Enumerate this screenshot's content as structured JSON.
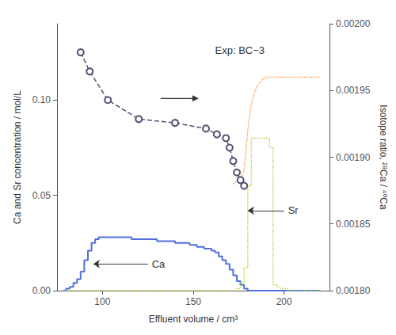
{
  "chart_data": {
    "type": "line",
    "xlabel": "Effluent volume / cm³",
    "ylabel": "Ca and Sr concentration / mol/L",
    "y2label": "Isotope ratio, ²⁸Ca / ⁴⁰Ca",
    "xlim": [
      75,
      225
    ],
    "xticks": [
      100,
      150,
      200
    ],
    "ylim": [
      0.0,
      0.14
    ],
    "yticks": [
      {
        "value": 0,
        "label": "0.00"
      },
      0.05,
      {
        "value": 0.1,
        "label": "0.10"
      }
    ],
    "y2lim": [
      0.0018,
      0.002
    ],
    "y2ticks": [
      {
        "value": 0.0018,
        "label": "0.00180"
      },
      0.00185,
      {
        "value": 0.0019,
        "label": "0.00190"
      },
      0.00195,
      {
        "value": 0.002,
        "label": "0.00200"
      }
    ],
    "grid": false,
    "series": [
      {
        "name": "Ca",
        "type": "step",
        "line_style": "solid",
        "x": [
          78,
          80,
          82,
          84,
          86,
          88,
          90,
          92,
          94,
          96,
          98,
          100,
          102,
          104,
          106,
          108,
          110,
          112,
          114,
          116,
          118,
          120,
          122,
          124,
          126,
          128,
          130,
          132,
          134,
          136,
          138,
          140,
          142,
          144,
          146,
          148,
          150,
          152,
          154,
          156,
          158,
          160,
          162,
          164,
          166,
          168,
          170,
          172,
          174,
          176,
          178,
          180,
          182,
          184,
          186,
          188,
          190,
          192,
          194,
          196,
          198,
          200,
          202,
          204,
          206,
          208,
          210,
          212,
          214,
          216,
          218,
          220
        ],
        "values": [
          0.0,
          0.001,
          0.002,
          0.004,
          0.006,
          0.01,
          0.016,
          0.021,
          0.025,
          0.027,
          0.028,
          0.028,
          0.028,
          0.028,
          0.028,
          0.028,
          0.028,
          0.028,
          0.028,
          0.027,
          0.027,
          0.027,
          0.027,
          0.027,
          0.027,
          0.027,
          0.026,
          0.026,
          0.026,
          0.026,
          0.026,
          0.025,
          0.025,
          0.025,
          0.025,
          0.024,
          0.024,
          0.023,
          0.023,
          0.022,
          0.022,
          0.021,
          0.02,
          0.018,
          0.016,
          0.014,
          0.011,
          0.008,
          0.005,
          0.003,
          0.001,
          0.0,
          0.0,
          0.0,
          0.0,
          0.0,
          0.0,
          0.0,
          0.0,
          0.0,
          0.0,
          0.0,
          0.0,
          0.0,
          0.0,
          0.0,
          0.0,
          0.0,
          0.0,
          0.0,
          0.0,
          0.0
        ]
      },
      {
        "name": "Sr",
        "type": "step",
        "line_style": "dotted",
        "x": [
          78,
          80,
          82,
          84,
          86,
          88,
          90,
          92,
          94,
          96,
          98,
          100,
          102,
          104,
          106,
          108,
          110,
          112,
          114,
          116,
          118,
          120,
          122,
          124,
          126,
          128,
          130,
          132,
          134,
          136,
          138,
          140,
          142,
          144,
          146,
          148,
          150,
          152,
          154,
          156,
          158,
          160,
          162,
          164,
          166,
          168,
          170,
          172,
          174,
          176,
          178,
          180,
          182,
          184,
          186,
          188,
          190,
          192,
          194,
          196,
          198,
          200,
          202,
          204,
          206,
          208,
          210,
          212,
          214,
          216,
          218,
          220
        ],
        "values": [
          0.0,
          0.0,
          0.0,
          0.0,
          0.0,
          0.0,
          0.0,
          0.0,
          0.0,
          0.0,
          0.0,
          0.0,
          0.0,
          0.0,
          0.0,
          0.0,
          0.0,
          0.0,
          0.0,
          0.0,
          0.0,
          0.0,
          0.0,
          0.0,
          0.0,
          0.0,
          0.0,
          0.0,
          0.0,
          0.0,
          0.0,
          0.0,
          0.0,
          0.0,
          0.0,
          0.0,
          0.0,
          0.0,
          0.0,
          0.0,
          0.0,
          0.0,
          0.0,
          0.0,
          0.0,
          0.0,
          0.0,
          0.0,
          0.001,
          0.004,
          0.012,
          0.055,
          0.08,
          0.08,
          0.08,
          0.08,
          0.08,
          0.075,
          0.003,
          0.002,
          0.001,
          0.001,
          0.0,
          0.0,
          0.0,
          0.0,
          0.0,
          0.0,
          0.0,
          0.0,
          0.0,
          0.0
        ]
      },
      {
        "type": "line",
        "marker": "circle",
        "line_style": "dashed",
        "x": [
          88,
          93,
          103,
          120,
          140,
          157,
          163,
          168,
          170,
          172,
          174,
          176,
          178
        ],
        "values": [
          0.125,
          0.115,
          0.1,
          0.09,
          0.088,
          0.085,
          0.082,
          0.08,
          0.075,
          0.068,
          0.062,
          0.058,
          0.055
        ]
      },
      {
        "type": "line",
        "axis": "y2",
        "line_style": "dotted",
        "x": [
          172,
          174,
          176,
          178,
          180,
          182,
          184,
          186,
          188,
          190,
          192,
          194,
          196,
          198,
          200,
          202,
          204,
          206,
          208,
          210,
          212,
          214,
          216,
          218,
          220
        ],
        "values": [
          0.00188,
          0.001882,
          0.001884,
          0.00189,
          0.00192,
          0.00194,
          0.00195,
          0.001955,
          0.001958,
          0.00196,
          0.00196,
          0.00196,
          0.00196,
          0.00196,
          0.00196,
          0.00196,
          0.00196,
          0.00196,
          0.00196,
          0.00196,
          0.00196,
          0.00196,
          0.00196,
          0.00196,
          0.00196
        ]
      }
    ],
    "annotations": [
      {
        "text": "Exp: BC−3"
      },
      {
        "text": "Ca",
        "x": 125,
        "y": 0.014,
        "arrow_x": 95
      },
      {
        "text": "Sr",
        "x": 200,
        "y": 0.042,
        "arrow_x": 180
      }
    ]
  }
}
